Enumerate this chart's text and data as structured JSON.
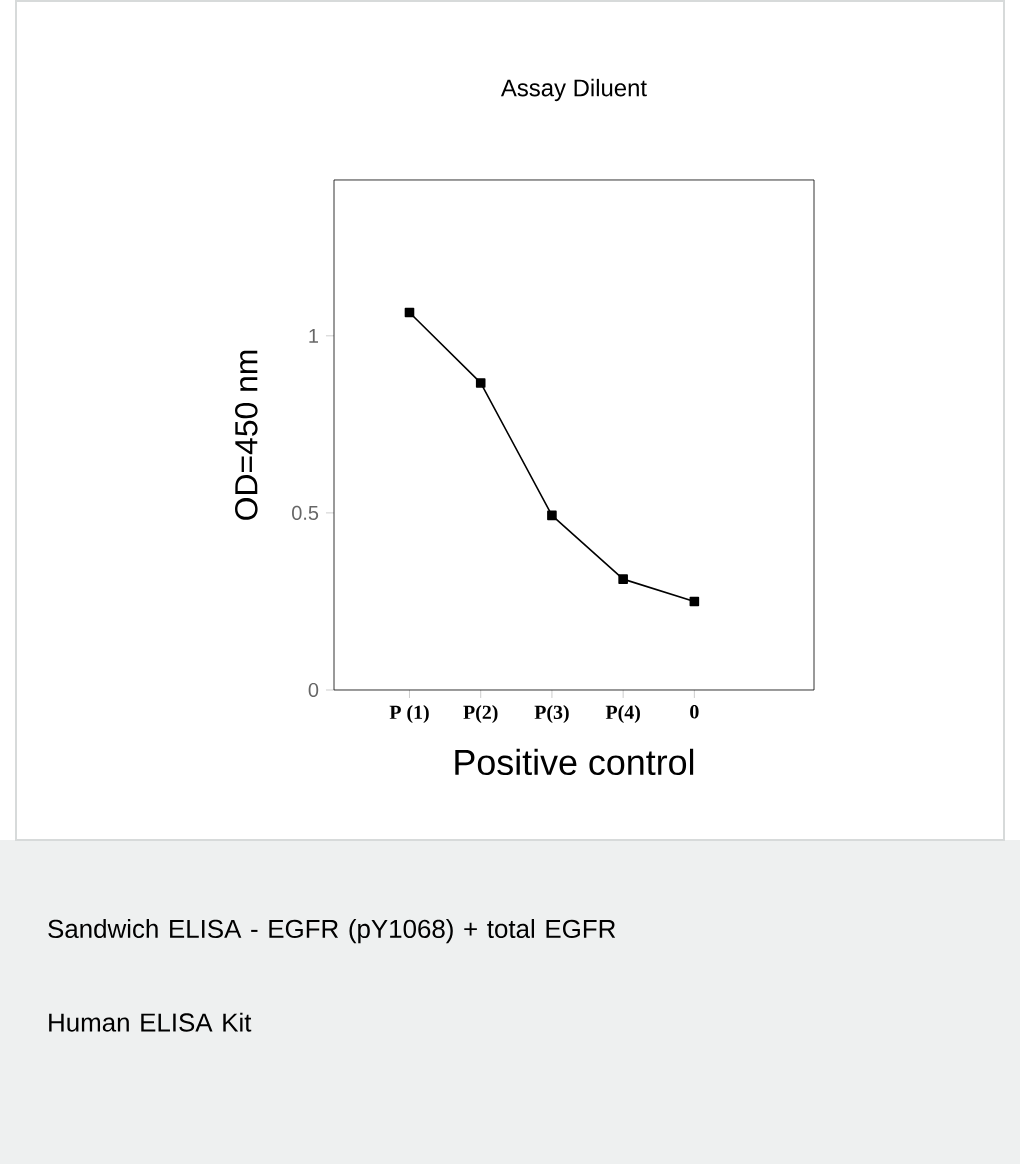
{
  "chart_data": {
    "type": "line",
    "title": "Assay Diluent",
    "xlabel": "Positive control",
    "ylabel": "OD=450 nm",
    "categories": [
      "P (1)",
      "P(2)",
      "P(3)",
      "P(4)",
      "0"
    ],
    "values": [
      1.066,
      0.867,
      0.493,
      0.313,
      0.25
    ],
    "color": "#000000",
    "marker": "square",
    "line_style": "solid",
    "ylim": [
      0,
      1.44
    ],
    "yticks": [
      0,
      0.5,
      1
    ],
    "grid": false,
    "annotations": [
      "Sandwich ELISA - EGFR (pY1068) + total EGFR Human ELISA Kit"
    ]
  }
}
